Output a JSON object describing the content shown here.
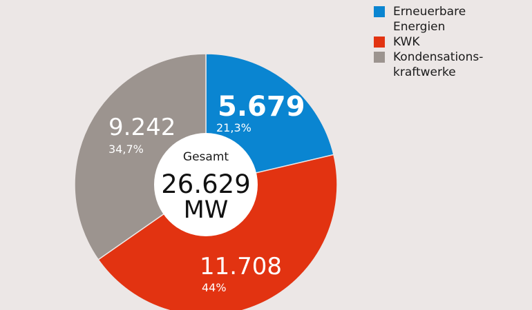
{
  "chart_data": {
    "type": "pie",
    "title": "",
    "center_label": {
      "caption": "Gesamt",
      "value": "26.629",
      "unit": "MW"
    },
    "slices": [
      {
        "name": "Erneuerbare Energien",
        "value": 5679,
        "value_label": "5.679",
        "percent_label": "21,3%",
        "color": "#0a85d1",
        "text_color": "#ffffff"
      },
      {
        "name": "KWK",
        "value": 11708,
        "value_label": "11.708",
        "percent_label": "44%",
        "color": "#e23311",
        "text_color": "#ffffff"
      },
      {
        "name": "Kondensationskraftwerke",
        "value": 9242,
        "value_label": "9.242",
        "percent_label": "34,7%",
        "color": "#9c948f",
        "text_color": "#ffffff"
      }
    ],
    "legend": {
      "placement": "top-right",
      "items": [
        {
          "label_lines": [
            "Erneuerbare",
            "Energien"
          ],
          "color": "#0a85d1"
        },
        {
          "label_lines": [
            "KWK"
          ],
          "color": "#e23311"
        },
        {
          "label_lines": [
            "Kondensations-",
            "kraftwerke"
          ],
          "color": "#9c948f"
        }
      ]
    }
  }
}
